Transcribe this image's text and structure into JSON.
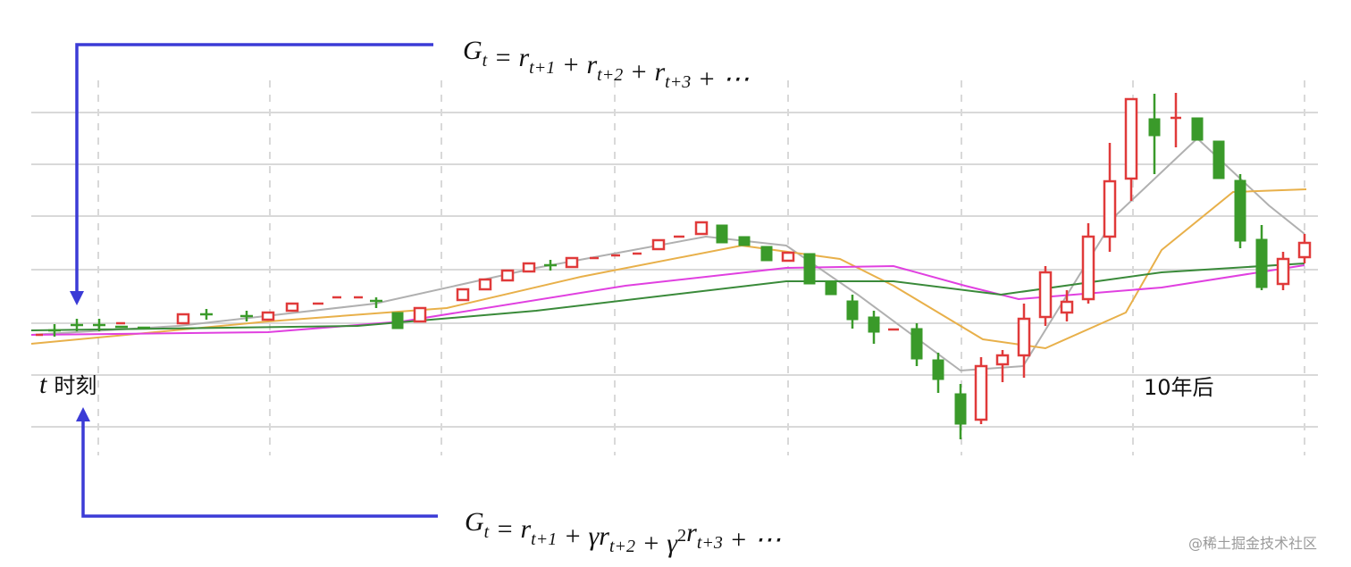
{
  "formulas": [
    [
      {
        "text": "G",
        "sub": "t"
      },
      {
        "text": " = "
      },
      {
        "text": "r",
        "sub": "t+1"
      },
      {
        "text": " + "
      },
      {
        "text": "r",
        "sub": "t+2"
      },
      {
        "text": " + "
      },
      {
        "text": "r",
        "sub": "t+3"
      },
      {
        "text": " + ⋯"
      }
    ],
    [
      {
        "text": "G",
        "sub": "t"
      },
      {
        "text": " = "
      },
      {
        "text": "r",
        "sub": "t+1"
      },
      {
        "text": " + "
      },
      {
        "text": "γr",
        "sub": "t+2"
      },
      {
        "text": " + "
      },
      {
        "text": "γ",
        "sup": "2"
      },
      {
        "text": "r",
        "sub": "t+3"
      },
      {
        "text": " + ⋯"
      }
    ]
  ],
  "labels": {
    "start_var": "t",
    "start": "时刻",
    "end": "10年后"
  },
  "watermark": "@稀土掘金技术社区"
}
